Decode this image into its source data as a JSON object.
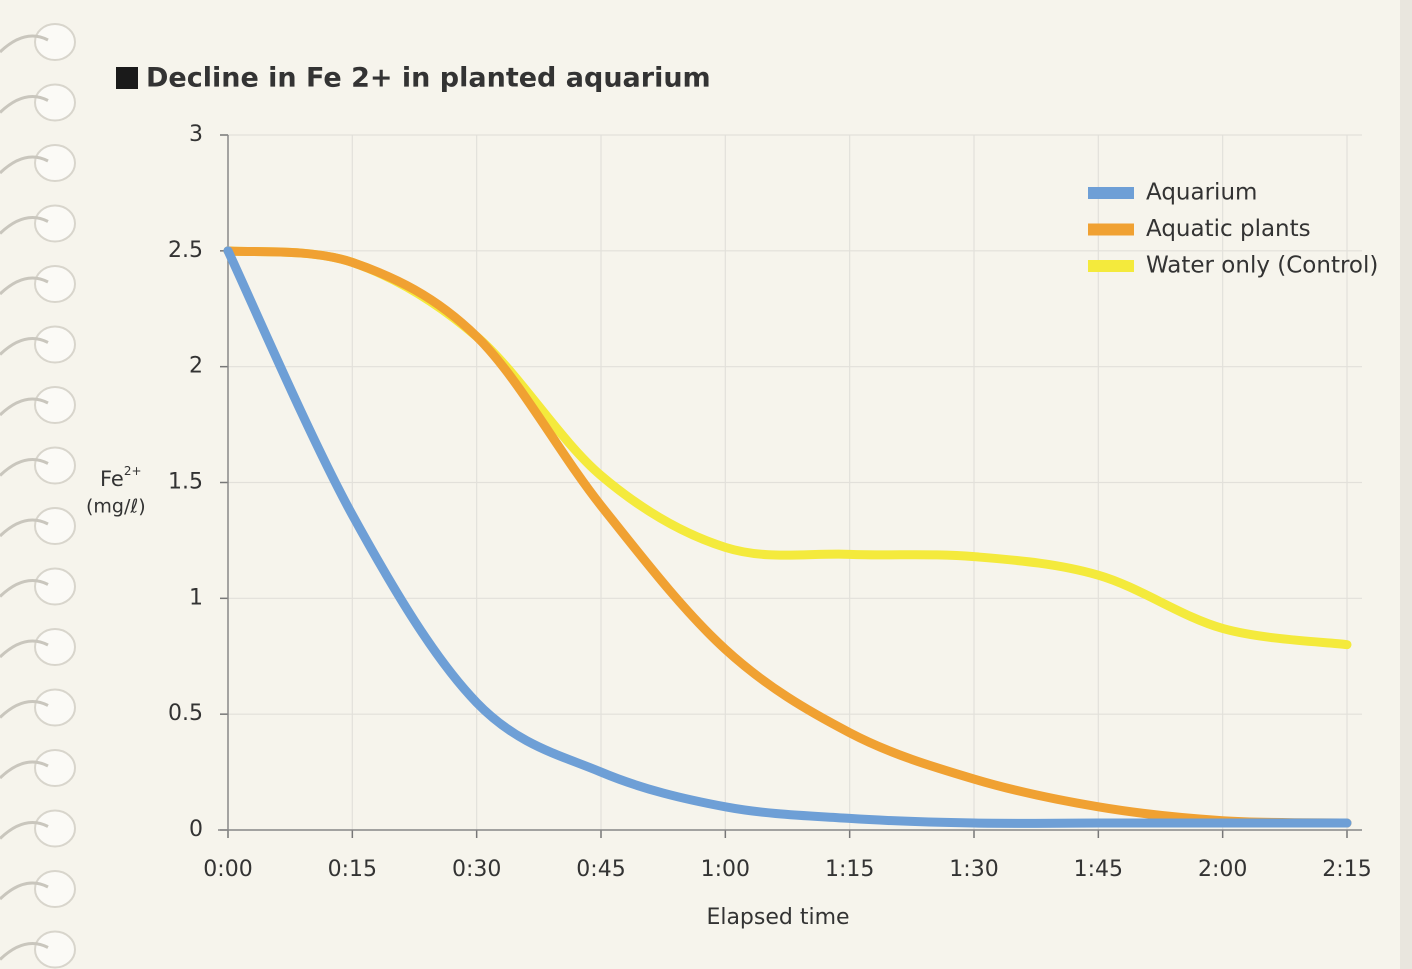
{
  "chart_data": {
    "type": "line",
    "title": "Decline in Fe 2+ in planted aquarium",
    "x_label": "Elapsed time",
    "y_label": "Fe",
    "y_label_superscript": "2+",
    "y_label_unit": "(mg/ℓ)",
    "categories": [
      "0:00",
      "0:15",
      "0:30",
      "0:45",
      "1:00",
      "1:15",
      "1:30",
      "1:45",
      "2:00",
      "2:15"
    ],
    "series": [
      {
        "name": "Water only (Control)",
        "color": "#f4ea3c",
        "values": [
          2.5,
          2.45,
          2.13,
          1.53,
          1.22,
          1.19,
          1.18,
          1.1,
          0.87,
          0.8
        ]
      },
      {
        "name": "Aquatic plants",
        "color": "#f0a132",
        "values": [
          2.5,
          2.45,
          2.13,
          1.4,
          0.78,
          0.42,
          0.22,
          0.1,
          0.04,
          0.03
        ]
      },
      {
        "name": "Aquarium",
        "color": "#6e9fd6",
        "values": [
          2.5,
          1.36,
          0.55,
          0.25,
          0.1,
          0.05,
          0.03,
          0.03,
          0.03,
          0.03
        ]
      }
    ],
    "legend_order": [
      2,
      1,
      0
    ],
    "ylim": [
      0,
      3
    ],
    "yticks": [
      0,
      0.5,
      1,
      1.5,
      2,
      2.5,
      3
    ],
    "grid": true,
    "legend": "top-right"
  }
}
